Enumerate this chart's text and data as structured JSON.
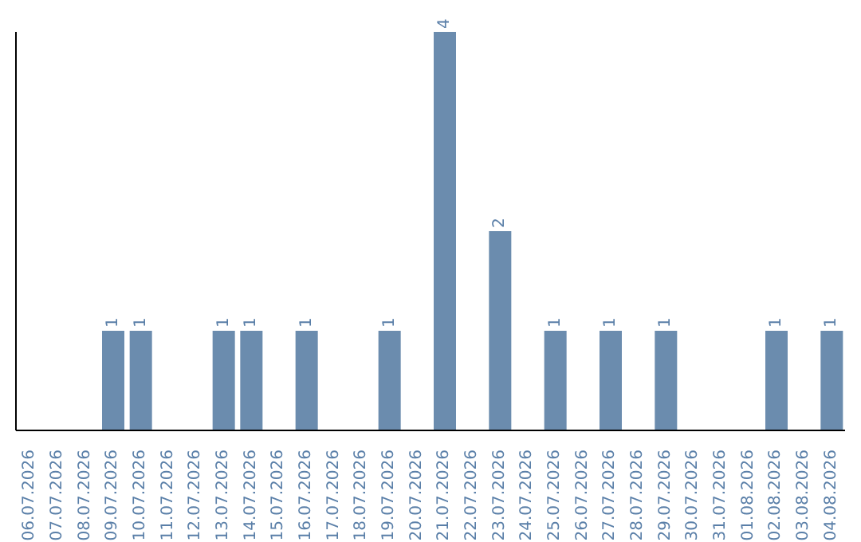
{
  "chart_data": {
    "type": "bar",
    "categories": [
      "06.07.2026",
      "07.07.2026",
      "08.07.2026",
      "09.07.2026",
      "10.07.2026",
      "11.07.2026",
      "12.07.2026",
      "13.07.2026",
      "14.07.2026",
      "15.07.2026",
      "16.07.2026",
      "17.07.2026",
      "18.07.2026",
      "19.07.2026",
      "20.07.2026",
      "21.07.2026",
      "22.07.2026",
      "23.07.2026",
      "24.07.2026",
      "25.07.2026",
      "26.07.2026",
      "27.07.2026",
      "28.07.2026",
      "29.07.2026",
      "30.07.2026",
      "31.07.2026",
      "01.08.2026",
      "02.08.2026",
      "03.08.2026",
      "04.08.2026"
    ],
    "values": [
      0,
      0,
      0,
      1,
      1,
      0,
      0,
      1,
      1,
      0,
      1,
      0,
      0,
      1,
      0,
      4,
      0,
      2,
      0,
      1,
      0,
      1,
      0,
      1,
      0,
      0,
      0,
      1,
      0,
      1
    ],
    "value_labels": [
      null,
      null,
      null,
      "1",
      "1",
      null,
      null,
      "1",
      "1",
      null,
      "1",
      null,
      null,
      "1",
      null,
      "4",
      null,
      "2",
      null,
      "1",
      null,
      "1",
      null,
      "1",
      null,
      null,
      null,
      "1",
      null,
      "1"
    ],
    "color": "#6b8cae",
    "ylim": [
      0,
      4
    ],
    "tick_labels": "x",
    "grid": false,
    "legend": false
  }
}
